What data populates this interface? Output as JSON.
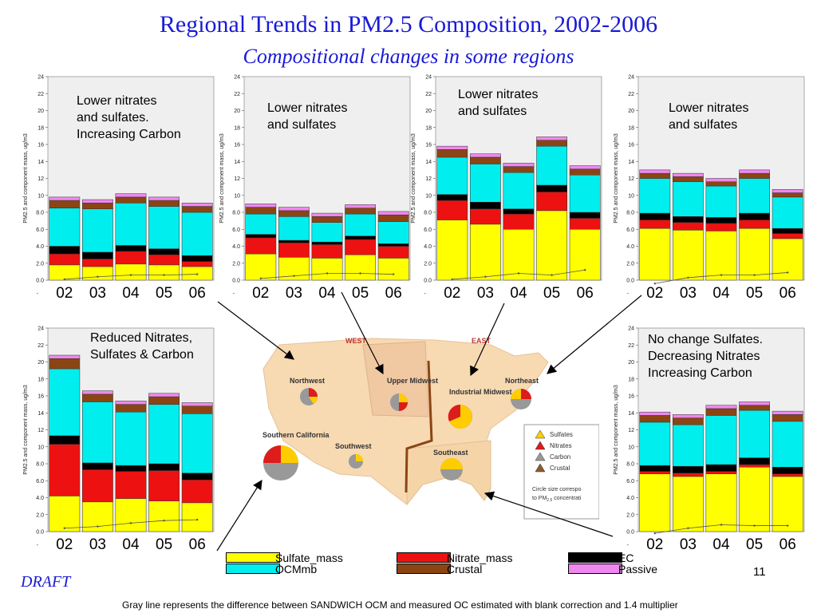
{
  "title": "Regional Trends in PM2.5 Composition, 2002-2006",
  "subtitle": "Compositional changes in some regions",
  "draft_label": "DRAFT",
  "footnote": "Gray line represents the difference between SANDWICH OCM and measured OC estimated with blank correction and 1.4 multiplier",
  "page_number": "11",
  "colors": {
    "Sulfate_mass": "#ffff00",
    "Nitrate_mass": "#ee1111",
    "EC": "#000000",
    "OCMmb": "#00eeee",
    "Crustal": "#8b4513",
    "Passive": "#ee88ee",
    "plot_bg": "#efefef",
    "title": "#1a1ad6"
  },
  "legend": [
    {
      "name": "Sulfate_mass",
      "color": "#ffff00"
    },
    {
      "name": "Nitrate_mass",
      "color": "#ee1111"
    },
    {
      "name": "EC",
      "color": "#000000"
    },
    {
      "name": "OCMmb",
      "color": "#00eeee"
    },
    {
      "name": "Crustal",
      "color": "#8b4513"
    },
    {
      "name": "Passive",
      "color": "#ee88ee"
    }
  ],
  "map": {
    "west_label": "WEST",
    "east_label": "EAST",
    "regions": [
      "Northwest",
      "Upper Midwest",
      "Industrial Midwest",
      "Northeast",
      "Southern California",
      "Southwest",
      "Southeast"
    ],
    "legend_items": [
      "Sulfates",
      "Nitrates",
      "Carbon",
      "Crustal"
    ],
    "legend_note_line1": "Circle size correspo",
    "legend_note_line2": "to PM",
    "legend_note_sub": "2.5",
    "legend_note_tail": " concentrati"
  },
  "chart_data": [
    {
      "type": "bar",
      "stacked": true,
      "annotation": "Lower nitrates\nand sulfates.\nIncreasing Carbon",
      "categories": [
        "02",
        "03",
        "04",
        "05",
        "06"
      ],
      "ylabel": "PM2.5 and component mass, ug/m3",
      "ylim": [
        0,
        24
      ],
      "yticks": [
        "0.0",
        "2.0",
        "4.0",
        "6.0",
        "8.0",
        "10",
        "12",
        "14",
        "16",
        "18",
        "20",
        "22",
        "24"
      ],
      "series": [
        {
          "name": "Sulfate_mass",
          "values": [
            1.8,
            1.6,
            1.9,
            1.8,
            1.6
          ]
        },
        {
          "name": "Nitrate_mass",
          "values": [
            1.3,
            0.9,
            1.5,
            1.2,
            0.6
          ]
        },
        {
          "name": "EC",
          "values": [
            0.9,
            0.8,
            0.7,
            0.7,
            0.7
          ]
        },
        {
          "name": "OCMmb",
          "values": [
            4.5,
            5.1,
            5.0,
            5.0,
            5.1
          ]
        },
        {
          "name": "Crustal",
          "values": [
            0.9,
            0.7,
            0.7,
            0.7,
            0.7
          ]
        },
        {
          "name": "Passive",
          "values": [
            0.4,
            0.4,
            0.4,
            0.4,
            0.4
          ]
        }
      ],
      "line": [
        0.1,
        0.4,
        0.6,
        0.6,
        0.7
      ]
    },
    {
      "type": "bar",
      "stacked": true,
      "annotation": "Lower nitrates\nand sulfates",
      "categories": [
        "02",
        "03",
        "04",
        "05",
        "06"
      ],
      "ylabel": "PM2.5 and component mass, ug/m3",
      "ylim": [
        0,
        24
      ],
      "yticks": [
        "0.0",
        "2.0",
        "4.0",
        "6.0",
        "8.0",
        "10",
        "12",
        "14",
        "16",
        "18",
        "20",
        "22",
        "24"
      ],
      "series": [
        {
          "name": "Sulfate_mass",
          "values": [
            3.1,
            2.7,
            2.6,
            3.0,
            2.6
          ]
        },
        {
          "name": "Nitrate_mass",
          "values": [
            1.9,
            1.7,
            1.6,
            1.8,
            1.4
          ]
        },
        {
          "name": "EC",
          "values": [
            0.4,
            0.3,
            0.3,
            0.4,
            0.3
          ]
        },
        {
          "name": "OCMmb",
          "values": [
            2.4,
            2.8,
            2.3,
            2.6,
            2.6
          ]
        },
        {
          "name": "Crustal",
          "values": [
            0.8,
            0.7,
            0.7,
            0.7,
            0.8
          ]
        },
        {
          "name": "Passive",
          "values": [
            0.4,
            0.4,
            0.4,
            0.4,
            0.4
          ]
        }
      ],
      "line": [
        0.2,
        0.5,
        0.8,
        0.8,
        0.7
      ]
    },
    {
      "type": "bar",
      "stacked": true,
      "annotation": "Lower nitrates\nand sulfates",
      "categories": [
        "02",
        "03",
        "04",
        "05",
        "06"
      ],
      "ylabel": "PM2.5 and component mass, ug/m3",
      "ylim": [
        0,
        24
      ],
      "yticks": [
        "0.0",
        "2.0",
        "4.0",
        "6.0",
        "8.0",
        "10",
        "12",
        "14",
        "16",
        "18",
        "20",
        "22",
        "24"
      ],
      "series": [
        {
          "name": "Sulfate_mass",
          "values": [
            7.1,
            6.6,
            6.0,
            8.2,
            6.0
          ]
        },
        {
          "name": "Nitrate_mass",
          "values": [
            2.3,
            1.8,
            1.8,
            2.2,
            1.3
          ]
        },
        {
          "name": "EC",
          "values": [
            0.7,
            0.8,
            0.6,
            0.8,
            0.7
          ]
        },
        {
          "name": "OCMmb",
          "values": [
            4.4,
            4.5,
            4.3,
            4.6,
            4.4
          ]
        },
        {
          "name": "Crustal",
          "values": [
            0.9,
            0.8,
            0.7,
            0.7,
            0.7
          ]
        },
        {
          "name": "Passive",
          "values": [
            0.4,
            0.4,
            0.4,
            0.4,
            0.4
          ]
        }
      ],
      "line": [
        0.1,
        0.4,
        0.8,
        0.6,
        1.2
      ]
    },
    {
      "type": "bar",
      "stacked": true,
      "annotation": "Lower nitrates\nand sulfates",
      "categories": [
        "02",
        "03",
        "04",
        "05",
        "06"
      ],
      "ylabel": "PM2.5 and component mass, ug/m3",
      "ylim": [
        0,
        24
      ],
      "yticks": [
        "0.0",
        "2.0",
        "4.0",
        "6.0",
        "8.0",
        "10",
        "12",
        "14",
        "16",
        "18",
        "20",
        "22",
        "24"
      ],
      "series": [
        {
          "name": "Sulfate_mass",
          "values": [
            6.1,
            5.9,
            5.8,
            6.1,
            4.9
          ]
        },
        {
          "name": "Nitrate_mass",
          "values": [
            1.0,
            0.9,
            0.9,
            1.0,
            0.6
          ]
        },
        {
          "name": "EC",
          "values": [
            0.8,
            0.7,
            0.7,
            0.8,
            0.6
          ]
        },
        {
          "name": "OCMmb",
          "values": [
            4.1,
            4.1,
            3.7,
            4.1,
            3.7
          ]
        },
        {
          "name": "Crustal",
          "values": [
            0.6,
            0.6,
            0.5,
            0.6,
            0.5
          ]
        },
        {
          "name": "Passive",
          "values": [
            0.4,
            0.4,
            0.4,
            0.4,
            0.4
          ]
        }
      ],
      "line": [
        -0.4,
        0.3,
        0.6,
        0.6,
        0.9
      ]
    },
    {
      "type": "bar",
      "stacked": true,
      "annotation": "Reduced Nitrates,\nSulfates & Carbon",
      "categories": [
        "02",
        "03",
        "04",
        "05",
        "06"
      ],
      "ylabel": "PM2.5 and component mass, ug/m3",
      "ylim": [
        0,
        24
      ],
      "yticks": [
        "0.0",
        "2.0",
        "4.0",
        "6.0",
        "8.0",
        "10",
        "12",
        "14",
        "16",
        "18",
        "20",
        "22",
        "24"
      ],
      "series": [
        {
          "name": "Sulfate_mass",
          "values": [
            4.2,
            3.5,
            3.9,
            3.6,
            3.4
          ]
        },
        {
          "name": "Nitrate_mass",
          "values": [
            6.1,
            3.8,
            3.2,
            3.6,
            2.7
          ]
        },
        {
          "name": "EC",
          "values": [
            1.0,
            0.8,
            0.7,
            0.8,
            0.8
          ]
        },
        {
          "name": "OCMmb",
          "values": [
            7.9,
            7.2,
            6.3,
            7.0,
            7.0
          ]
        },
        {
          "name": "Crustal",
          "values": [
            1.2,
            0.9,
            0.9,
            0.9,
            0.9
          ]
        },
        {
          "name": "Passive",
          "values": [
            0.4,
            0.4,
            0.4,
            0.4,
            0.4
          ]
        }
      ],
      "line": [
        0.4,
        0.6,
        1.0,
        1.3,
        1.4
      ]
    },
    {
      "type": "bar",
      "stacked": true,
      "annotation": "No change Sulfates.\nDecreasing Nitrates\nIncreasing Carbon",
      "categories": [
        "02",
        "03",
        "04",
        "05",
        "06"
      ],
      "ylabel": "PM2.5 and component mass, ug/m3",
      "ylim": [
        0,
        24
      ],
      "yticks": [
        "0.0",
        "2.0",
        "4.0",
        "6.0",
        "8.0",
        "10",
        "12",
        "14",
        "16",
        "18",
        "20",
        "22",
        "24"
      ],
      "series": [
        {
          "name": "Sulfate_mass",
          "values": [
            6.8,
            6.5,
            6.8,
            7.6,
            6.5
          ]
        },
        {
          "name": "Nitrate_mass",
          "values": [
            0.3,
            0.4,
            0.3,
            0.3,
            0.3
          ]
        },
        {
          "name": "EC",
          "values": [
            0.7,
            0.8,
            0.8,
            0.8,
            0.8
          ]
        },
        {
          "name": "OCMmb",
          "values": [
            5.1,
            4.9,
            5.8,
            5.6,
            5.4
          ]
        },
        {
          "name": "Crustal",
          "values": [
            0.8,
            0.8,
            0.8,
            0.6,
            0.8
          ]
        },
        {
          "name": "Passive",
          "values": [
            0.4,
            0.4,
            0.4,
            0.4,
            0.4
          ]
        }
      ],
      "line": [
        -0.2,
        0.4,
        0.8,
        0.7,
        0.7
      ]
    }
  ]
}
